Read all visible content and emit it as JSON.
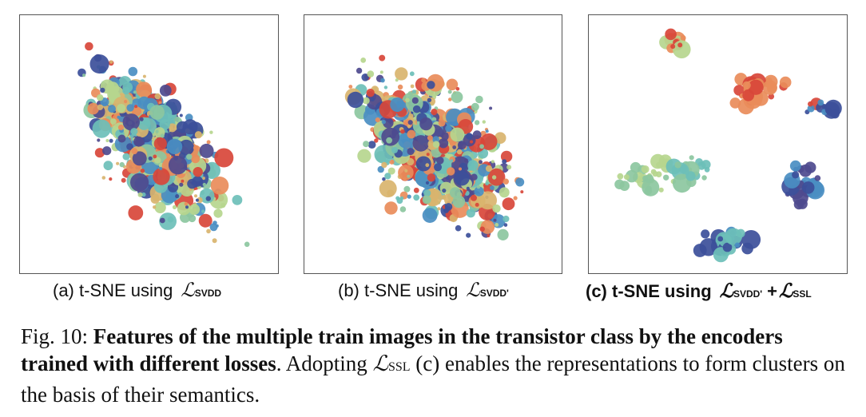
{
  "panels": [
    {
      "caption_prefix": "(a) t-SNE using ",
      "loss": "SVDD",
      "bold": false
    },
    {
      "caption_prefix": "(b) t-SNE using ",
      "loss": "SVDD'",
      "bold": false
    },
    {
      "caption_prefix": "(c) t-SNE using ",
      "loss": "SVDD'",
      "loss2": "SSL",
      "plus": "+",
      "bold": true
    }
  ],
  "colors": {
    "red": "#d8473a",
    "orange": "#e98c5a",
    "tan": "#d9b46e",
    "lightgreen": "#b6d68e",
    "green": "#8cc7a0",
    "teal": "#6cbfb8",
    "blue": "#4a8ec2",
    "navy": "#3c4f9a",
    "purple": "#4e4a8e"
  },
  "caption": {
    "label": "Fig. 10:",
    "title": "Features of the multiple train images in the transistor class by the encoders trained with different losses",
    "body_pre": ". Adopting ",
    "body_loss": "SSL",
    "body_post": " (c) enables the representations to form clusters on the basis of their semantics."
  }
}
